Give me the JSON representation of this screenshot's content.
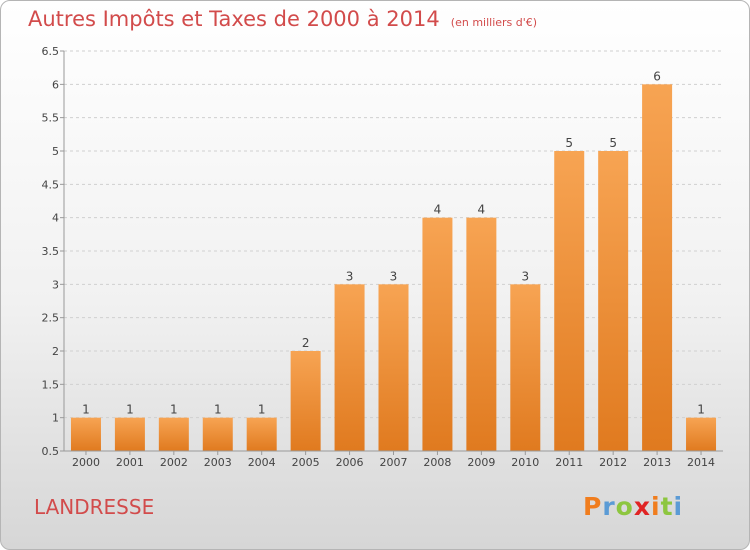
{
  "title": "Autres Impôts et Taxes de 2000 à 2014",
  "subtitle": "(en milliers d'€)",
  "commune": "LANDRESSE",
  "logo": {
    "letters": [
      {
        "ch": "P",
        "color": "#f07d1e"
      },
      {
        "ch": "r",
        "color": "#5b9bd5"
      },
      {
        "ch": "o",
        "color": "#8dc63f"
      },
      {
        "ch": "x",
        "color": "#e02424"
      },
      {
        "ch": "i",
        "color": "#f07d1e"
      },
      {
        "ch": "t",
        "color": "#8dc63f"
      },
      {
        "ch": "i",
        "color": "#5b9bd5"
      }
    ]
  },
  "colors": {
    "bar_light": "#f7a453",
    "bar_dark": "#e07a1f",
    "grid": "#d0d0d0",
    "axis": "#999999"
  },
  "chart_data": {
    "type": "bar",
    "categories": [
      "2000",
      "2001",
      "2002",
      "2003",
      "2004",
      "2005",
      "2006",
      "2007",
      "2008",
      "2009",
      "2010",
      "2011",
      "2012",
      "2013",
      "2014"
    ],
    "values": [
      1,
      1,
      1,
      1,
      1,
      2,
      3,
      3,
      4,
      4,
      3,
      5,
      5,
      6,
      1
    ],
    "data_labels": [
      "1",
      "1",
      "1",
      "1",
      "1",
      "2",
      "3",
      "3",
      "4",
      "4",
      "3",
      "5",
      "5",
      "6",
      "1"
    ],
    "ylim": [
      0.5,
      6.5
    ],
    "yticks": [
      0.5,
      1,
      1.5,
      2,
      2.5,
      3,
      3.5,
      4,
      4.5,
      5,
      5.5,
      6,
      6.5
    ],
    "ytick_labels": [
      "0.5",
      "1",
      "1.5",
      "2",
      "2.5",
      "3",
      "3.5",
      "4",
      "4.5",
      "5",
      "5.5",
      "6",
      "6.5"
    ],
    "grid": true,
    "xlabel": "",
    "ylabel": ""
  }
}
